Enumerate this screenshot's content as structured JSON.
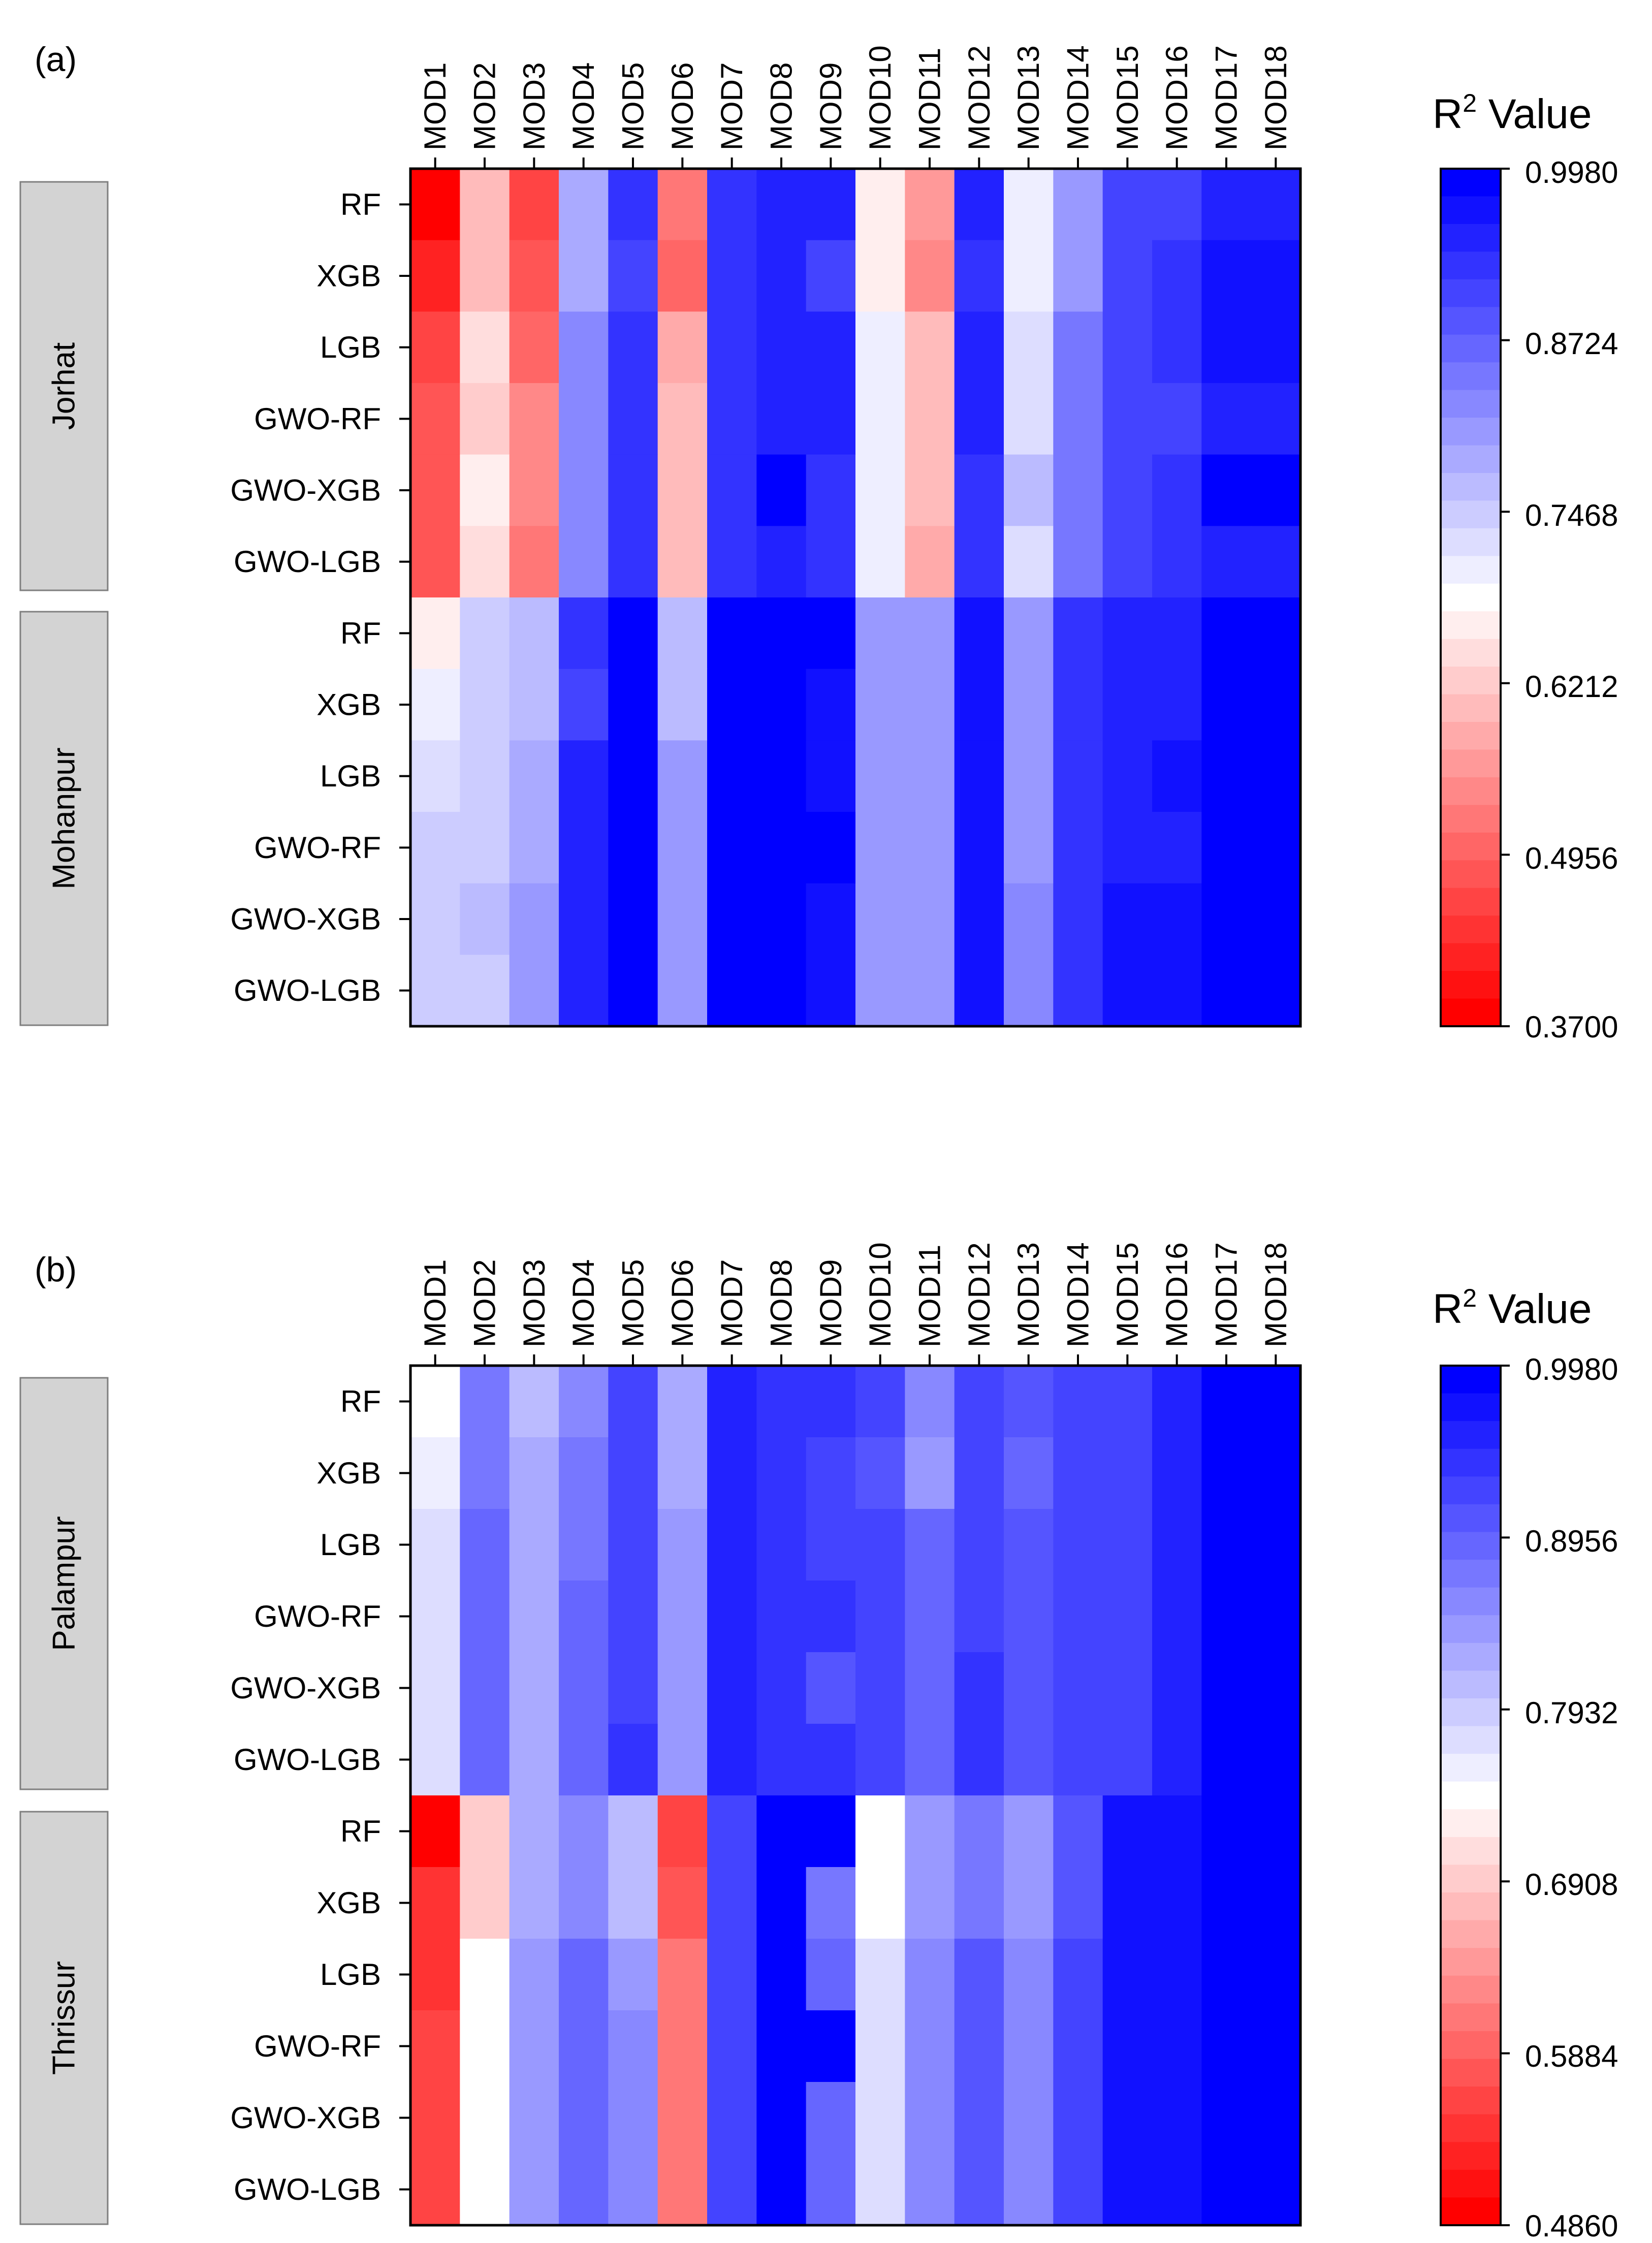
{
  "figure": {
    "panels": [
      {
        "label": "(a)",
        "colorbar_title": "R",
        "colorbar_title_sup": "2",
        "colorbar_title_rest": " Value",
        "colorbar_ticks": [
          "0.9980",
          "0.8724",
          "0.7468",
          "0.6212",
          "0.4956",
          "0.3700"
        ],
        "groups": [
          "Jorhat",
          "Mohanpur"
        ]
      },
      {
        "label": "(b)",
        "colorbar_title": "R",
        "colorbar_title_sup": "2",
        "colorbar_title_rest": " Value",
        "colorbar_ticks": [
          "0.9980",
          "0.8956",
          "0.7932",
          "0.6908",
          "0.5884",
          "0.4860"
        ],
        "groups": [
          "Palampur",
          "Thrissur"
        ]
      }
    ]
  },
  "chart_data": [
    {
      "type": "heatmap",
      "title": "(a)",
      "x": [
        "MOD1",
        "MOD2",
        "MOD3",
        "MOD4",
        "MOD5",
        "MOD6",
        "MOD7",
        "MOD8",
        "MOD9",
        "MOD10",
        "MOD11",
        "MOD12",
        "MOD13",
        "MOD14",
        "MOD15",
        "MOD16",
        "MOD17",
        "MOD18"
      ],
      "y": [
        "RF",
        "XGB",
        "LGB",
        "GWO-RF",
        "GWO-XGB",
        "GWO-LGB",
        "RF",
        "XGB",
        "LGB",
        "GWO-RF",
        "GWO-XGB",
        "GWO-LGB"
      ],
      "groups": [
        {
          "name": "Jorhat",
          "rows": [
            0,
            5
          ]
        },
        {
          "name": "Mohanpur",
          "rows": [
            6,
            11
          ]
        }
      ],
      "zlabel": "R2 Value",
      "zlim": [
        0.37,
        0.998
      ],
      "values": [
        [
          0.38,
          0.6,
          0.46,
          0.79,
          0.93,
          0.51,
          0.93,
          0.96,
          0.96,
          0.67,
          0.56,
          0.95,
          0.7,
          0.82,
          0.91,
          0.91,
          0.95,
          0.95
        ],
        [
          0.42,
          0.61,
          0.48,
          0.78,
          0.91,
          0.5,
          0.93,
          0.96,
          0.91,
          0.67,
          0.53,
          0.93,
          0.71,
          0.81,
          0.91,
          0.93,
          0.98,
          0.98
        ],
        [
          0.45,
          0.65,
          0.5,
          0.83,
          0.93,
          0.57,
          0.93,
          0.96,
          0.95,
          0.7,
          0.59,
          0.95,
          0.73,
          0.85,
          0.91,
          0.93,
          0.98,
          0.98
        ],
        [
          0.47,
          0.63,
          0.53,
          0.83,
          0.93,
          0.59,
          0.93,
          0.95,
          0.95,
          0.7,
          0.59,
          0.95,
          0.73,
          0.85,
          0.91,
          0.91,
          0.95,
          0.95
        ],
        [
          0.47,
          0.66,
          0.54,
          0.83,
          0.93,
          0.59,
          0.93,
          0.99,
          0.93,
          0.7,
          0.61,
          0.93,
          0.76,
          0.85,
          0.91,
          0.93,
          0.99,
          0.99
        ],
        [
          0.47,
          0.65,
          0.51,
          0.83,
          0.93,
          0.59,
          0.93,
          0.95,
          0.93,
          0.71,
          0.57,
          0.93,
          0.73,
          0.85,
          0.91,
          0.93,
          0.96,
          0.96
        ],
        [
          0.67,
          0.74,
          0.76,
          0.93,
          0.99,
          0.76,
          0.99,
          0.998,
          0.998,
          0.8,
          0.8,
          0.98,
          0.8,
          0.94,
          0.95,
          0.95,
          0.99,
          0.99
        ],
        [
          0.7,
          0.74,
          0.76,
          0.91,
          0.99,
          0.76,
          0.99,
          0.998,
          0.97,
          0.8,
          0.8,
          0.98,
          0.8,
          0.94,
          0.95,
          0.95,
          0.99,
          0.99
        ],
        [
          0.73,
          0.75,
          0.79,
          0.95,
          0.99,
          0.8,
          0.99,
          0.998,
          0.97,
          0.81,
          0.81,
          0.98,
          0.8,
          0.94,
          0.95,
          0.97,
          0.99,
          0.99
        ],
        [
          0.75,
          0.75,
          0.79,
          0.95,
          0.99,
          0.8,
          0.99,
          0.998,
          0.998,
          0.81,
          0.81,
          0.98,
          0.81,
          0.94,
          0.95,
          0.95,
          0.99,
          0.99
        ],
        [
          0.75,
          0.77,
          0.8,
          0.95,
          0.99,
          0.8,
          0.99,
          0.998,
          0.97,
          0.81,
          0.81,
          0.98,
          0.83,
          0.94,
          0.98,
          0.98,
          0.99,
          0.99
        ],
        [
          0.75,
          0.75,
          0.81,
          0.96,
          0.99,
          0.8,
          0.99,
          0.998,
          0.97,
          0.81,
          0.81,
          0.98,
          0.83,
          0.94,
          0.98,
          0.98,
          0.99,
          0.99
        ]
      ]
    },
    {
      "type": "heatmap",
      "title": "(b)",
      "x": [
        "MOD1",
        "MOD2",
        "MOD3",
        "MOD4",
        "MOD5",
        "MOD6",
        "MOD7",
        "MOD8",
        "MOD9",
        "MOD10",
        "MOD11",
        "MOD12",
        "MOD13",
        "MOD14",
        "MOD15",
        "MOD16",
        "MOD17",
        "MOD18"
      ],
      "y": [
        "RF",
        "XGB",
        "LGB",
        "GWO-RF",
        "GWO-XGB",
        "GWO-LGB",
        "RF",
        "XGB",
        "LGB",
        "GWO-RF",
        "GWO-XGB",
        "GWO-LGB"
      ],
      "groups": [
        {
          "name": "Palampur",
          "rows": [
            0,
            5
          ]
        },
        {
          "name": "Thrissur",
          "rows": [
            6,
            11
          ]
        }
      ],
      "zlabel": "R2 Value",
      "zlim": [
        0.486,
        0.998
      ],
      "values": [
        [
          0.74,
          0.87,
          0.81,
          0.86,
          0.93,
          0.83,
          0.97,
          0.95,
          0.95,
          0.93,
          0.86,
          0.93,
          0.91,
          0.93,
          0.93,
          0.97,
          0.998,
          0.998
        ],
        [
          0.76,
          0.87,
          0.82,
          0.87,
          0.93,
          0.82,
          0.97,
          0.95,
          0.93,
          0.91,
          0.85,
          0.93,
          0.9,
          0.93,
          0.93,
          0.97,
          0.998,
          0.998
        ],
        [
          0.78,
          0.89,
          0.82,
          0.87,
          0.93,
          0.84,
          0.97,
          0.95,
          0.93,
          0.93,
          0.89,
          0.93,
          0.91,
          0.93,
          0.93,
          0.97,
          0.998,
          0.998
        ],
        [
          0.78,
          0.89,
          0.82,
          0.89,
          0.93,
          0.84,
          0.97,
          0.95,
          0.95,
          0.93,
          0.89,
          0.93,
          0.91,
          0.93,
          0.93,
          0.97,
          0.998,
          0.998
        ],
        [
          0.78,
          0.89,
          0.82,
          0.89,
          0.93,
          0.84,
          0.97,
          0.95,
          0.92,
          0.93,
          0.89,
          0.95,
          0.91,
          0.93,
          0.93,
          0.97,
          0.998,
          0.998
        ],
        [
          0.78,
          0.89,
          0.82,
          0.89,
          0.95,
          0.84,
          0.97,
          0.95,
          0.95,
          0.93,
          0.89,
          0.95,
          0.91,
          0.93,
          0.93,
          0.97,
          0.998,
          0.998
        ],
        [
          0.49,
          0.69,
          0.82,
          0.86,
          0.81,
          0.55,
          0.93,
          0.998,
          0.998,
          0.75,
          0.84,
          0.88,
          0.84,
          0.91,
          0.98,
          0.98,
          0.998,
          0.998
        ],
        [
          0.53,
          0.69,
          0.82,
          0.86,
          0.81,
          0.57,
          0.93,
          0.998,
          0.88,
          0.75,
          0.84,
          0.88,
          0.84,
          0.91,
          0.98,
          0.98,
          0.998,
          0.998
        ],
        [
          0.54,
          0.74,
          0.84,
          0.89,
          0.84,
          0.6,
          0.93,
          0.998,
          0.89,
          0.78,
          0.86,
          0.91,
          0.86,
          0.93,
          0.98,
          0.98,
          0.998,
          0.998
        ],
        [
          0.56,
          0.74,
          0.84,
          0.89,
          0.86,
          0.6,
          0.93,
          0.998,
          0.998,
          0.78,
          0.86,
          0.91,
          0.86,
          0.93,
          0.98,
          0.98,
          0.998,
          0.998
        ],
        [
          0.56,
          0.74,
          0.84,
          0.89,
          0.86,
          0.6,
          0.93,
          0.998,
          0.89,
          0.78,
          0.86,
          0.91,
          0.86,
          0.93,
          0.98,
          0.98,
          0.998,
          0.998
        ],
        [
          0.56,
          0.74,
          0.84,
          0.89,
          0.86,
          0.6,
          0.93,
          0.998,
          0.89,
          0.78,
          0.86,
          0.91,
          0.86,
          0.93,
          0.98,
          0.98,
          0.998,
          0.998
        ]
      ]
    }
  ]
}
